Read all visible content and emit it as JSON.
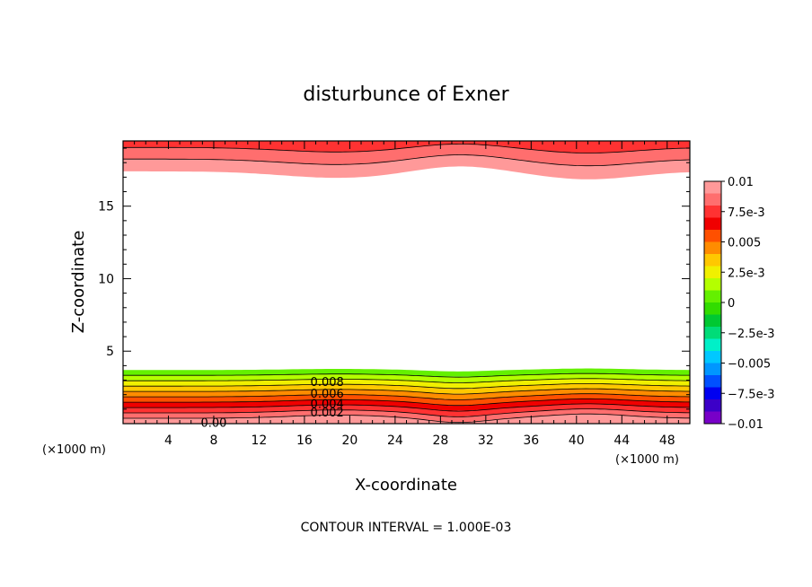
{
  "chart_data": {
    "type": "contour",
    "title": "disturbunce of Exner",
    "xlabel": "X-coordinate",
    "ylabel": "Z-coordinate",
    "x_unit": "(×1000 m)",
    "xlim": [
      0,
      50
    ],
    "ylim": [
      0,
      19.5
    ],
    "x_ticks": [
      4,
      8,
      12,
      16,
      20,
      24,
      28,
      32,
      36,
      40,
      44,
      48
    ],
    "x_tick_labels": [
      "4",
      "8",
      "12",
      "16",
      "20",
      "24",
      "28",
      "32",
      "36",
      "40",
      "44",
      "48"
    ],
    "y_ticks": [
      5,
      10,
      15
    ],
    "y_tick_labels": [
      "5",
      "10",
      "15"
    ],
    "contour_interval": 0.001,
    "contour_interval_label": "CONTOUR INTERVAL = 1.000E-03",
    "contour_labels": [
      {
        "text": "0.008",
        "x": 18,
        "z": 2.9
      },
      {
        "text": "0.006",
        "x": 18,
        "z": 2.1
      },
      {
        "text": "0.004",
        "x": 18,
        "z": 1.4
      },
      {
        "text": "0.002",
        "x": 18,
        "z": 0.8
      },
      {
        "text": "0.00",
        "x": 8,
        "z": 0.1
      }
    ],
    "lower_band_levels": [
      0.0,
      0.001,
      0.002,
      0.003,
      0.004,
      0.005,
      0.006,
      0.007,
      0.008,
      0.009
    ],
    "lower_band_top_z": 3.7,
    "upper_band_bottom_z": 17.4,
    "colorbar": {
      "min": -0.01,
      "max": 0.01,
      "tick_labels": [
        "0.01",
        "7.5e-3",
        "0.005",
        "2.5e-3",
        "0",
        "−2.5e-3",
        "−0.005",
        "−7.5e-3",
        "−0.01"
      ],
      "colors": [
        "#ff9999",
        "#ff6e6e",
        "#ff3232",
        "#f00000",
        "#ff5000",
        "#ff8c00",
        "#ffc800",
        "#f0f000",
        "#b4ff00",
        "#64f000",
        "#32dc00",
        "#00c832",
        "#00dc78",
        "#00f0c8",
        "#00c8ff",
        "#0096ff",
        "#0050ff",
        "#0000f0",
        "#3c00c8",
        "#7800c8"
      ]
    }
  }
}
